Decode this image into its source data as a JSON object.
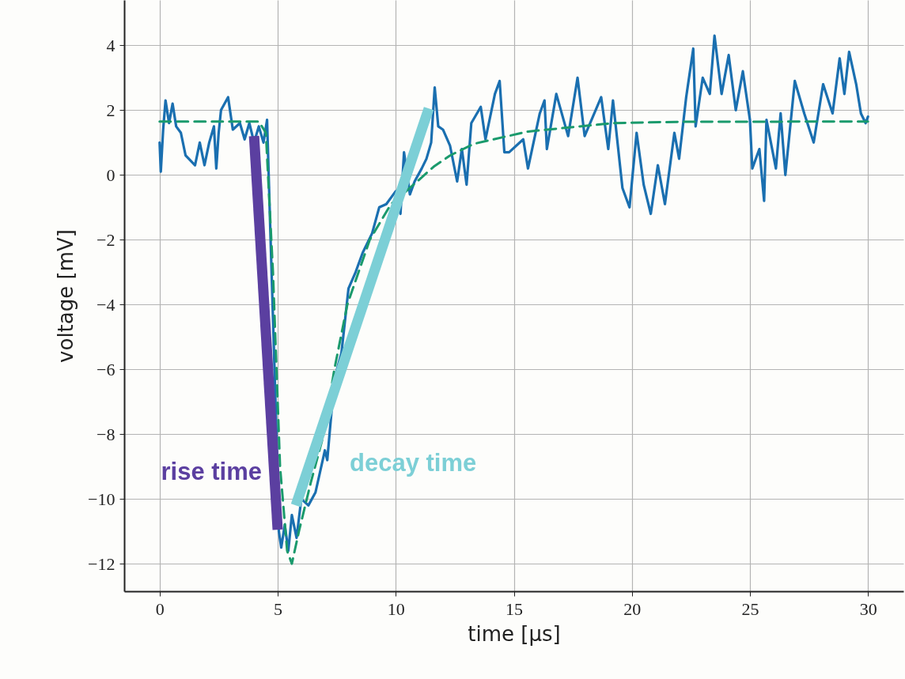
{
  "chart_data": {
    "type": "line",
    "xlabel": "time [μs]",
    "ylabel": "voltage [mV]",
    "xlim": [
      -1.5,
      31.5
    ],
    "ylim": [
      -12.85,
      5.4
    ],
    "xticks": [
      0,
      5,
      10,
      15,
      20,
      25,
      30
    ],
    "yticks": [
      {
        "value": -12,
        "label": "−12"
      },
      {
        "value": -10,
        "label": "−10"
      },
      {
        "value": -8,
        "label": "−8"
      },
      {
        "value": -6,
        "label": "−6"
      },
      {
        "value": -4,
        "label": "−4"
      },
      {
        "value": -2,
        "label": "−2"
      },
      0,
      2,
      4
    ],
    "grid": true,
    "marker": "none",
    "series": [
      {
        "color": "#1a6fb0",
        "x": [
          0,
          0.05,
          0.15,
          0.25,
          0.4,
          0.55,
          0.7,
          0.9,
          1.1,
          1.5,
          1.7,
          1.9,
          2.1,
          2.3,
          2.4,
          2.5,
          2.6,
          2.9,
          3.1,
          3.4,
          3.6,
          3.8,
          4.0,
          4.2,
          4.4,
          4.55,
          4.7,
          4.95,
          5.05,
          5.15,
          5.3,
          5.45,
          5.6,
          5.8,
          6.0,
          6.3,
          6.6,
          7.0,
          7.1,
          7.4,
          7.7,
          8.0,
          8.3,
          8.6,
          9.0,
          9.3,
          9.6,
          10.0,
          10.2,
          10.35,
          10.6,
          10.8,
          11.1,
          11.3,
          11.5,
          11.65,
          11.8,
          12.0,
          12.3,
          12.6,
          12.8,
          13.0,
          13.2,
          13.6,
          13.8,
          14.2,
          14.4,
          14.6,
          14.8,
          15.4,
          15.6,
          16.1,
          16.3,
          16.4,
          16.8,
          17.3,
          17.7,
          18.0,
          18.7,
          19.0,
          19.2,
          19.6,
          19.9,
          20.2,
          20.5,
          20.8,
          21.1,
          21.4,
          21.8,
          22.0,
          22.3,
          22.6,
          22.7,
          23.0,
          23.3,
          23.5,
          23.8,
          24.1,
          24.4,
          24.7,
          25.0,
          25.1,
          25.4,
          25.6,
          25.7,
          26.1,
          26.3,
          26.5,
          26.9,
          27.3,
          27.7,
          28.1,
          28.5,
          28.8,
          29.0,
          29.2,
          29.5,
          29.7,
          29.9,
          30.0
        ],
        "values": [
          1.0,
          0.1,
          1.4,
          2.3,
          1.6,
          2.2,
          1.5,
          1.3,
          0.6,
          0.3,
          1.0,
          0.3,
          1.0,
          1.5,
          0.2,
          1.3,
          2.0,
          2.4,
          1.4,
          1.6,
          1.1,
          1.6,
          1.0,
          1.5,
          1.0,
          1.7,
          -2,
          -8,
          -11,
          -11.5,
          -10.8,
          -11.6,
          -10.5,
          -11.2,
          -10.0,
          -10.2,
          -9.8,
          -8.5,
          -8.8,
          -6.3,
          -5.5,
          -3.5,
          -3.0,
          -2.4,
          -1.8,
          -1.0,
          -0.9,
          -0.5,
          -1.2,
          0.7,
          -0.6,
          -0.2,
          0.2,
          0.5,
          1.0,
          2.7,
          1.5,
          1.4,
          0.9,
          -0.2,
          0.8,
          -0.3,
          1.6,
          2.1,
          1.1,
          2.5,
          2.9,
          0.7,
          0.7,
          1.1,
          0.2,
          1.9,
          2.3,
          0.8,
          2.5,
          1.2,
          3.0,
          1.2,
          2.4,
          0.8,
          2.3,
          -0.4,
          -1.0,
          1.3,
          -0.3,
          -1.2,
          0.3,
          -0.9,
          1.3,
          0.5,
          2.4,
          3.9,
          1.5,
          3.0,
          2.5,
          4.3,
          2.5,
          3.7,
          2.0,
          3.2,
          1.7,
          0.2,
          0.8,
          -0.8,
          1.7,
          0.2,
          1.9,
          0.0,
          2.9,
          1.9,
          1.0,
          2.8,
          1.9,
          3.6,
          2.5,
          3.8,
          2.8,
          1.9,
          1.6,
          1.8
        ]
      },
      {
        "color": "#1a9a6c",
        "line_style": "dashed",
        "x": [
          0,
          4.2,
          4.5,
          4.8,
          5.1,
          5.4,
          5.6,
          5.9,
          6.4,
          6.95,
          7.4,
          7.95,
          8.9,
          9.8,
          10.6,
          11.6,
          12.3,
          13.3,
          15.6,
          19.2,
          22,
          30
        ],
        "values": [
          1.65,
          1.65,
          1.3,
          -3,
          -9,
          -11.6,
          -12,
          -11,
          -9.5,
          -8,
          -6,
          -4,
          -2,
          -0.9,
          -0.4,
          0.25,
          0.6,
          0.96,
          1.34,
          1.6,
          1.64,
          1.65
        ]
      },
      {
        "name": "rise time",
        "color": "#5b3fa0",
        "x": [
          4.0,
          5.0
        ],
        "values": [
          1.2,
          -10.95
        ]
      },
      {
        "name": "decay time",
        "color": "#7ccfd6",
        "x": [
          5.77,
          11.4
        ],
        "values": [
          -10.2,
          2.05
        ]
      }
    ]
  }
}
